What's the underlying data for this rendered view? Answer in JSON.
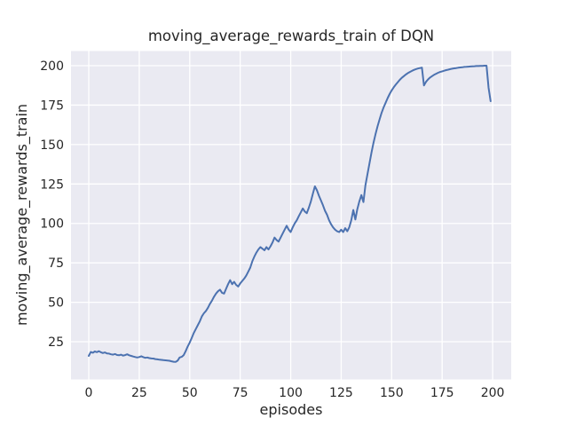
{
  "chart_data": {
    "type": "line",
    "title": "moving_average_rewards_train of DQN",
    "xlabel": "episodes",
    "ylabel": "moving_average_rewards_train",
    "x_ticks": [
      0,
      25,
      50,
      75,
      100,
      125,
      150,
      175,
      200
    ],
    "y_ticks": [
      25,
      50,
      75,
      100,
      125,
      150,
      175,
      200
    ],
    "xlim": [
      -8.8,
      209.2
    ],
    "ylim": [
      1.1,
      209.3
    ],
    "grid": true,
    "legend": "none",
    "style": {
      "figure_background": "#ffffff",
      "axes_background": "#EAEAF2",
      "grid_color": "#FFFFFF",
      "line_color": "#4C72B0",
      "text_color": "#262626"
    },
    "series": [
      {
        "name": "moving_average_rewards_train",
        "x_start": 0,
        "x_step": 1,
        "values": [
          16,
          18.5,
          18,
          18.8,
          18.4,
          19,
          18.3,
          17.8,
          18.2,
          17.6,
          17.5,
          17,
          16.8,
          17.2,
          16.6,
          16.4,
          16.8,
          16.2,
          16.5,
          17,
          16.4,
          16,
          15.6,
          15.3,
          15,
          15.3,
          15.8,
          15.2,
          14.8,
          15,
          14.6,
          14.4,
          14.3,
          14,
          13.8,
          13.6,
          13.5,
          13.3,
          13.2,
          13.1,
          12.9,
          12.6,
          12.3,
          12.2,
          13,
          15,
          15.4,
          16.5,
          19,
          22,
          24.5,
          27.5,
          30.5,
          33,
          35.5,
          38,
          41,
          43,
          44.5,
          46.5,
          49,
          51,
          53.5,
          55.5,
          57,
          58,
          56,
          55.5,
          58.5,
          61.5,
          64,
          61.5,
          63,
          61,
          60,
          62,
          63.5,
          65,
          67,
          69.5,
          72,
          76,
          79,
          81.5,
          83.5,
          85,
          84,
          83,
          85,
          83.5,
          85.5,
          88,
          91,
          89.5,
          88.5,
          91,
          93.5,
          96,
          98.5,
          96,
          94.5,
          97.5,
          100,
          102,
          104.5,
          107,
          109.5,
          107.5,
          106.5,
          110,
          114,
          119,
          123.5,
          121,
          117.5,
          114.5,
          111.5,
          108,
          105.5,
          102,
          99.5,
          97.5,
          96,
          95,
          94.5,
          96,
          94.5,
          97,
          95,
          97.5,
          102,
          108.5,
          102.5,
          109,
          114,
          118,
          113.5,
          124,
          131,
          138,
          145,
          151,
          156.5,
          161.5,
          166,
          170,
          173.5,
          176.5,
          179.5,
          182,
          184.3,
          186.3,
          188,
          189.5,
          191,
          192.3,
          193.4,
          194.4,
          195.3,
          196,
          196.7,
          197.3,
          197.8,
          198.2,
          198.5,
          198.8,
          187.5,
          189.8,
          191.3,
          192.5,
          193.4,
          194.2,
          194.9,
          195.5,
          196,
          196.4,
          196.8,
          197.2,
          197.5,
          197.8,
          198.1,
          198.3,
          198.5,
          198.7,
          198.9,
          199,
          199.2,
          199.3,
          199.4,
          199.5,
          199.6,
          199.7,
          199.8,
          199.8,
          199.9,
          199.9,
          200,
          200,
          186,
          177.5
        ]
      }
    ]
  }
}
